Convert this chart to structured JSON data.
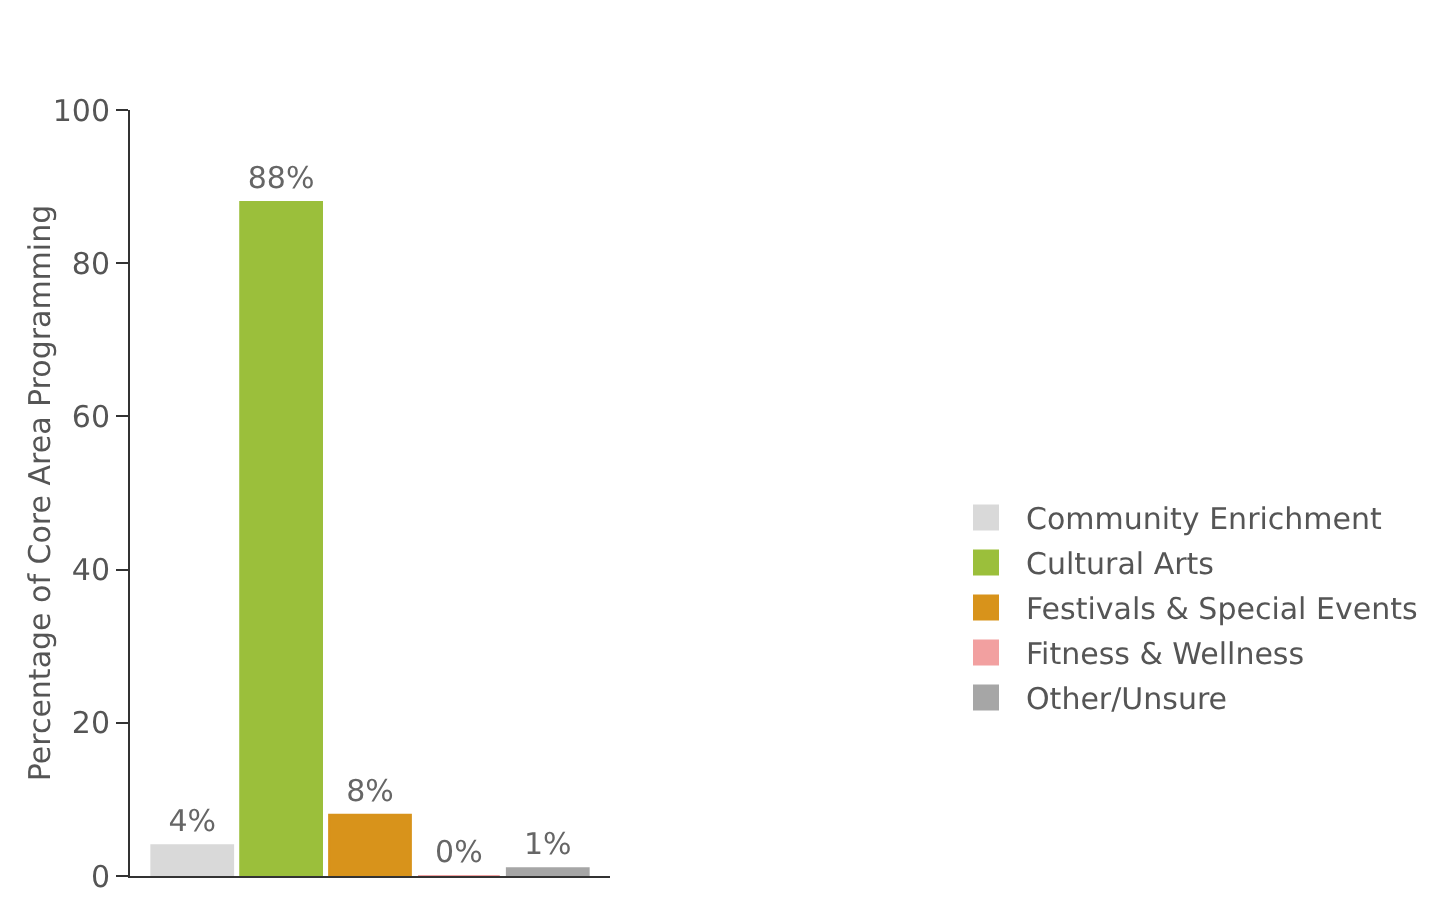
{
  "chart_data": {
    "type": "bar",
    "ylabel": "Percentage of Core Area Programming",
    "categories": [
      null,
      null,
      null,
      null,
      null
    ],
    "series": [
      {
        "name": "Community Enrichment",
        "color": "#d9d9d9",
        "values": [
          4,
          null,
          null,
          null,
          null
        ],
        "value_labels": [
          "4%",
          null,
          null,
          null,
          null
        ]
      },
      {
        "name": "Cultural Arts",
        "color": "#9bbf3b",
        "values": [
          null,
          88,
          null,
          null,
          null
        ],
        "value_labels": [
          null,
          "88%",
          null,
          null,
          null
        ]
      },
      {
        "name": "Festivals & Special Events",
        "color": "#d8931b",
        "values": [
          null,
          null,
          8,
          null,
          null
        ],
        "value_labels": [
          null,
          null,
          "8%",
          null,
          null
        ]
      },
      {
        "name": "Fitness & Wellness",
        "color": "#f2a0a0",
        "values": [
          null,
          null,
          null,
          0,
          null
        ],
        "value_labels": [
          null,
          null,
          null,
          "0%",
          null
        ]
      },
      {
        "name": "Other/Unsure",
        "color": "#a6a6a6",
        "values": [
          null,
          null,
          null,
          null,
          1
        ],
        "value_labels": [
          null,
          null,
          null,
          null,
          "1%"
        ]
      }
    ],
    "ylim": [
      0,
      100
    ],
    "yticks": [
      0,
      20,
      40,
      60,
      80,
      100
    ],
    "legend": "right"
  }
}
